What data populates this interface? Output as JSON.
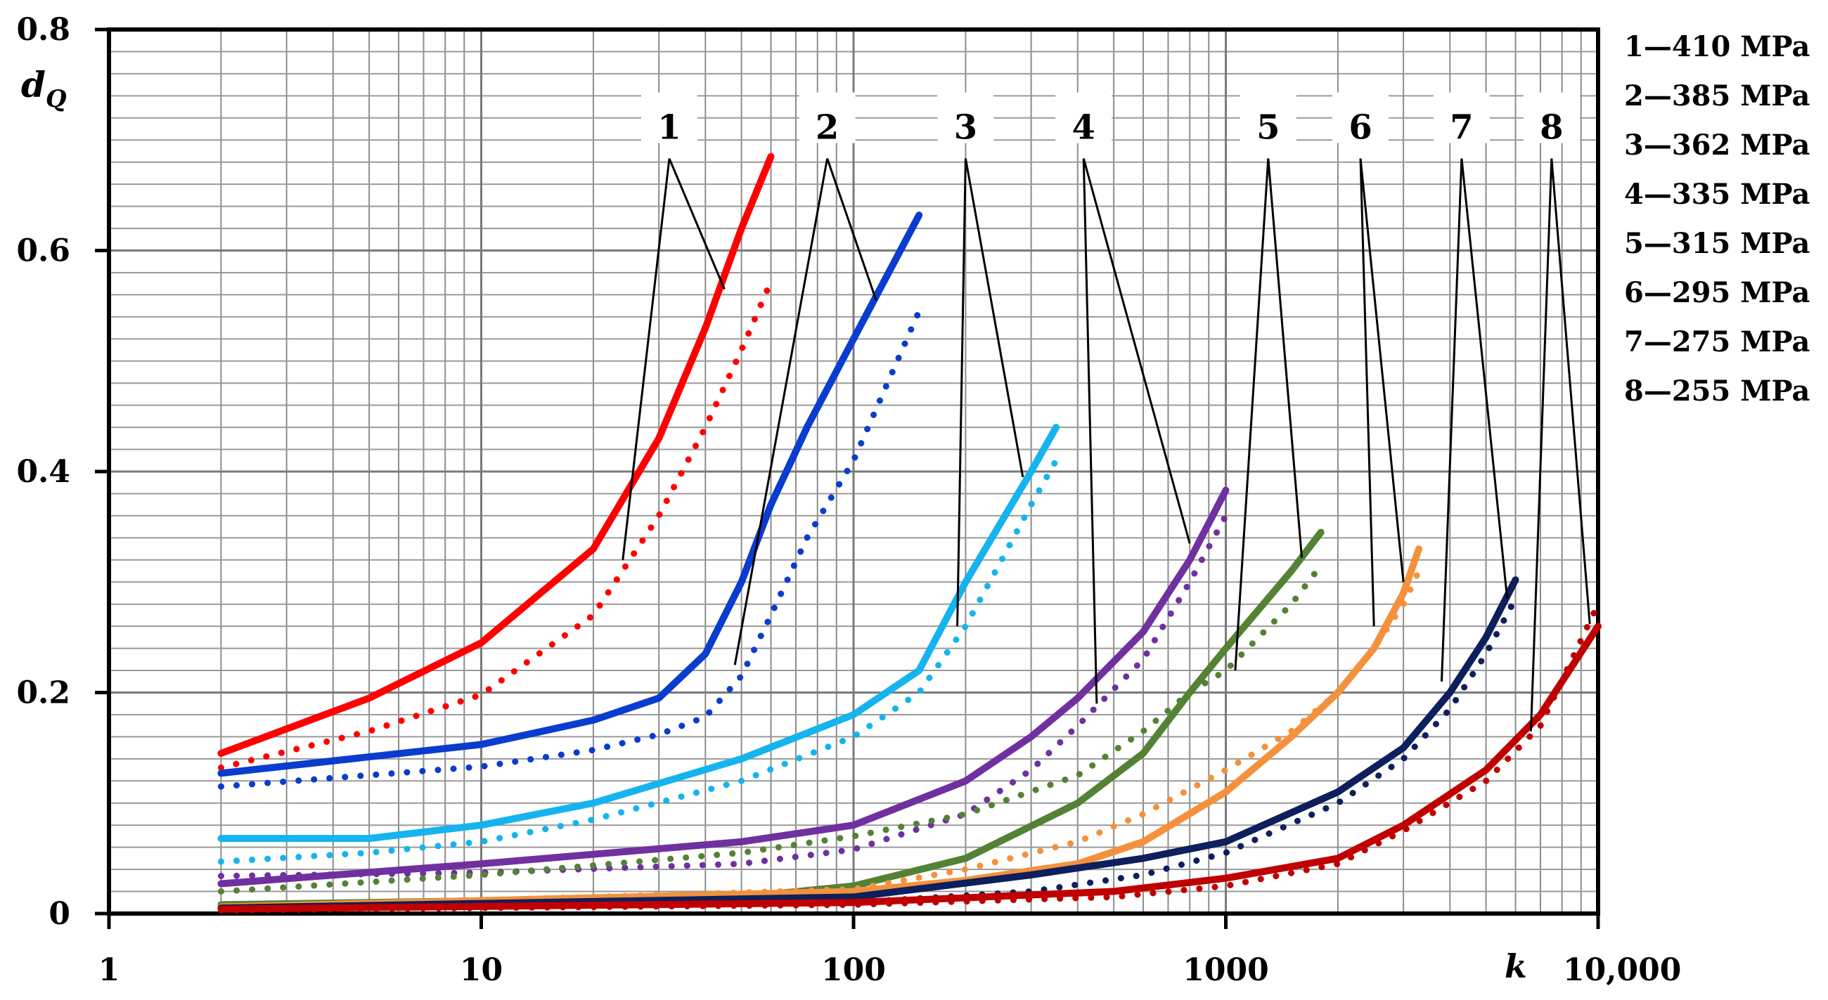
{
  "chart_data": {
    "type": "line",
    "title": "",
    "xlabel": "k",
    "ylabel_main": "d",
    "ylabel_sub": "Q",
    "xscale": "log",
    "xlim": [
      1,
      10000
    ],
    "ylim": [
      0,
      0.8
    ],
    "grid": true,
    "legend_position": "top-right, outside plot",
    "x_tick_labels": [
      "1",
      "10",
      "100",
      "1000",
      "10,000"
    ],
    "y_tick_labels": [
      "0",
      "0.2",
      "0.4",
      "0.6",
      "0.8"
    ],
    "legend_entries": [
      {
        "id": "1",
        "dash": "—",
        "label": "410 MPa"
      },
      {
        "id": "2",
        "dash": "—",
        "label": "385 MPa"
      },
      {
        "id": "3",
        "dash": "—",
        "label": "362 MPa"
      },
      {
        "id": "4",
        "dash": "—",
        "label": "335 MPa"
      },
      {
        "id": "5",
        "dash": "—",
        "label": "315 MPa"
      },
      {
        "id": "6",
        "dash": "—",
        "label": "295 MPa"
      },
      {
        "id": "7",
        "dash": "—",
        "label": "275 MPa"
      },
      {
        "id": "8",
        "dash": "—",
        "label": "255 MPa"
      }
    ],
    "series": [
      {
        "name": "1 solid",
        "stress": "410 MPa",
        "style": "solid",
        "color": "#ff0000",
        "x": [
          2,
          5,
          10,
          20,
          30,
          40,
          50,
          60
        ],
        "y": [
          0.145,
          0.195,
          0.245,
          0.33,
          0.43,
          0.53,
          0.62,
          0.685
        ]
      },
      {
        "name": "1 dotted",
        "stress": "410 MPa",
        "style": "dotted",
        "color": "#ff0000",
        "x": [
          2,
          5,
          10,
          20,
          30,
          40,
          50,
          60
        ],
        "y": [
          0.132,
          0.165,
          0.198,
          0.27,
          0.36,
          0.44,
          0.51,
          0.572
        ]
      },
      {
        "name": "2 solid",
        "stress": "385 MPa",
        "style": "solid",
        "color": "#0a3ccf",
        "x": [
          2,
          10,
          20,
          30,
          40,
          50,
          60,
          75,
          100,
          150
        ],
        "y": [
          0.127,
          0.153,
          0.175,
          0.195,
          0.235,
          0.3,
          0.37,
          0.44,
          0.52,
          0.632
        ]
      },
      {
        "name": "2 dotted",
        "stress": "385 MPa",
        "style": "dotted",
        "color": "#0a3ccf",
        "x": [
          2,
          10,
          20,
          30,
          40,
          50,
          60,
          75,
          100,
          150
        ],
        "y": [
          0.115,
          0.133,
          0.148,
          0.162,
          0.178,
          0.215,
          0.27,
          0.34,
          0.41,
          0.545
        ]
      },
      {
        "name": "3 solid",
        "stress": "362 MPa",
        "style": "solid",
        "color": "#15b4ee",
        "x": [
          2,
          5,
          10,
          20,
          50,
          100,
          150,
          200,
          250,
          300,
          350
        ],
        "y": [
          0.068,
          0.068,
          0.08,
          0.1,
          0.14,
          0.18,
          0.22,
          0.3,
          0.355,
          0.4,
          0.44
        ]
      },
      {
        "name": "3 dotted",
        "stress": "362 MPa",
        "style": "dotted",
        "color": "#15b4ee",
        "x": [
          2,
          5,
          10,
          20,
          50,
          100,
          150,
          200,
          250,
          300,
          350
        ],
        "y": [
          0.047,
          0.055,
          0.065,
          0.085,
          0.12,
          0.16,
          0.2,
          0.26,
          0.32,
          0.37,
          0.41
        ]
      },
      {
        "name": "4 solid",
        "stress": "335 MPa",
        "style": "solid",
        "color": "#7030a0",
        "x": [
          2,
          10,
          50,
          100,
          200,
          300,
          400,
          600,
          800,
          1000
        ],
        "y": [
          0.027,
          0.045,
          0.065,
          0.08,
          0.12,
          0.16,
          0.195,
          0.255,
          0.32,
          0.383
        ]
      },
      {
        "name": "4 dotted",
        "stress": "335 MPa",
        "style": "dotted",
        "color": "#7030a0",
        "x": [
          2,
          10,
          50,
          100,
          200,
          300,
          400,
          600,
          800,
          1000
        ],
        "y": [
          0.034,
          0.037,
          0.045,
          0.058,
          0.09,
          0.13,
          0.17,
          0.23,
          0.3,
          0.36
        ]
      },
      {
        "name": "5 solid",
        "stress": "315 MPa",
        "style": "solid",
        "color": "#548235",
        "x": [
          2,
          50,
          100,
          200,
          400,
          600,
          800,
          1000,
          1500,
          1800
        ],
        "y": [
          0.008,
          0.015,
          0.025,
          0.05,
          0.1,
          0.145,
          0.2,
          0.24,
          0.31,
          0.345
        ]
      },
      {
        "name": "5 dotted",
        "stress": "315 MPa",
        "style": "dotted",
        "color": "#548235",
        "x": [
          2,
          10,
          50,
          100,
          200,
          400,
          600,
          800,
          1000,
          1500,
          1800
        ],
        "y": [
          0.02,
          0.035,
          0.055,
          0.07,
          0.09,
          0.125,
          0.165,
          0.2,
          0.22,
          0.28,
          0.315
        ]
      },
      {
        "name": "6 solid",
        "stress": "295 MPa",
        "style": "solid",
        "color": "#f4913c",
        "x": [
          2,
          100,
          200,
          400,
          600,
          1000,
          1500,
          2000,
          2500,
          3000,
          3300
        ],
        "y": [
          0.006,
          0.02,
          0.03,
          0.045,
          0.065,
          0.11,
          0.16,
          0.2,
          0.24,
          0.29,
          0.33
        ]
      },
      {
        "name": "6 dotted",
        "stress": "295 MPa",
        "style": "dotted",
        "color": "#f4913c",
        "x": [
          2,
          100,
          200,
          400,
          600,
          1000,
          1500,
          2000,
          2500,
          3000,
          3300
        ],
        "y": [
          0.005,
          0.022,
          0.04,
          0.065,
          0.09,
          0.13,
          0.165,
          0.2,
          0.24,
          0.28,
          0.31
        ]
      },
      {
        "name": "7 solid",
        "stress": "275 MPa",
        "style": "solid",
        "color": "#0d1f5c",
        "x": [
          2,
          100,
          300,
          600,
          1000,
          2000,
          3000,
          4000,
          5000,
          6000
        ],
        "y": [
          0.005,
          0.015,
          0.035,
          0.05,
          0.065,
          0.11,
          0.15,
          0.2,
          0.25,
          0.302
        ]
      },
      {
        "name": "7 dotted",
        "stress": "275 MPa",
        "style": "dotted",
        "color": "#0d1f5c",
        "x": [
          2,
          100,
          300,
          600,
          1000,
          2000,
          3000,
          4000,
          5000,
          6000
        ],
        "y": [
          0.004,
          0.01,
          0.02,
          0.035,
          0.055,
          0.1,
          0.14,
          0.185,
          0.235,
          0.285
        ]
      },
      {
        "name": "8 solid",
        "stress": "255 MPa",
        "style": "solid",
        "color": "#c00000",
        "x": [
          2,
          100,
          500,
          1000,
          2000,
          3000,
          5000,
          7000,
          10000
        ],
        "y": [
          0.004,
          0.01,
          0.02,
          0.032,
          0.05,
          0.08,
          0.13,
          0.18,
          0.26
        ]
      },
      {
        "name": "8 dotted",
        "stress": "255 MPa",
        "style": "dotted",
        "color": "#c00000",
        "x": [
          2,
          100,
          500,
          1000,
          2000,
          3000,
          5000,
          7000,
          10000
        ],
        "y": [
          0.003,
          0.008,
          0.015,
          0.025,
          0.045,
          0.075,
          0.12,
          0.17,
          0.28
        ]
      }
    ],
    "callouts": [
      {
        "label": "1",
        "x": 32,
        "y": 0.71,
        "targets": [
          {
            "x": 45,
            "y": 0.565
          },
          {
            "x": 24,
            "y": 0.32
          }
        ]
      },
      {
        "label": "2",
        "x": 85,
        "y": 0.71,
        "targets": [
          {
            "x": 115,
            "y": 0.555
          },
          {
            "x": 48,
            "y": 0.225
          }
        ]
      },
      {
        "label": "3",
        "x": 200,
        "y": 0.71,
        "targets": [
          {
            "x": 285,
            "y": 0.395
          },
          {
            "x": 190,
            "y": 0.26
          }
        ]
      },
      {
        "label": "4",
        "x": 415,
        "y": 0.71,
        "targets": [
          {
            "x": 800,
            "y": 0.335
          },
          {
            "x": 450,
            "y": 0.19
          }
        ]
      },
      {
        "label": "5",
        "x": 1300,
        "y": 0.71,
        "targets": [
          {
            "x": 1600,
            "y": 0.322
          },
          {
            "x": 1060,
            "y": 0.22
          }
        ]
      },
      {
        "label": "6",
        "x": 2300,
        "y": 0.71,
        "targets": [
          {
            "x": 3000,
            "y": 0.3
          },
          {
            "x": 2500,
            "y": 0.26
          }
        ]
      },
      {
        "label": "7",
        "x": 4300,
        "y": 0.71,
        "targets": [
          {
            "x": 5700,
            "y": 0.285
          },
          {
            "x": 3800,
            "y": 0.21
          }
        ]
      },
      {
        "label": "8",
        "x": 7500,
        "y": 0.71,
        "targets": [
          {
            "x": 9500,
            "y": 0.262
          },
          {
            "x": 6600,
            "y": 0.165
          }
        ]
      }
    ]
  }
}
